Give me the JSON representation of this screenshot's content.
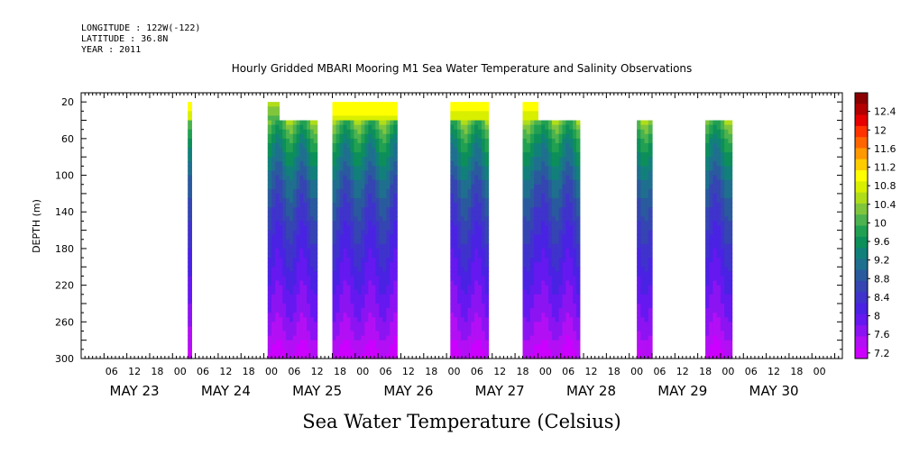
{
  "header": {
    "longitude": "LONGITUDE : 122W(-122)",
    "latitude": "LATITUDE : 36.8N",
    "year": "YEAR : 2011",
    "title": "Hourly Gridded MBARI Mooring M1 Sea Water Temperature and Salinity Observations"
  },
  "chart_data": {
    "type": "heatmap",
    "title": "Hourly Gridded MBARI Mooring M1 Sea Water Temperature and Salinity Observations",
    "xlabel": "Sea Water Temperature (Celsius)",
    "ylabel": "DEPTH (m)",
    "ylim": [
      300,
      10
    ],
    "y_ticks": [
      20,
      60,
      100,
      140,
      180,
      220,
      260,
      300
    ],
    "x_range_hours": [
      0,
      200
    ],
    "x_tick_hours": [
      "06",
      "12",
      "18",
      "00",
      "06",
      "12",
      "18",
      "00",
      "06",
      "12",
      "18",
      "00",
      "06",
      "12",
      "18",
      "00",
      "06",
      "12",
      "18",
      "00",
      "06",
      "12",
      "18",
      "00",
      "06",
      "12",
      "18",
      "00",
      "06",
      "12",
      "18",
      "00"
    ],
    "day_labels": [
      "MAY 23",
      "MAY 24",
      "MAY 25",
      "MAY 26",
      "MAY 27",
      "MAY 28",
      "MAY 29",
      "MAY 30"
    ],
    "colorbar": {
      "labels": [
        "12.4",
        "12",
        "11.6",
        "11.2",
        "10.8",
        "10.4",
        "10",
        "9.6",
        "9.2",
        "8.8",
        "8.4",
        "8",
        "7.6",
        "7.2"
      ],
      "colors": [
        "#8b0000",
        "#b30000",
        "#e60000",
        "#ff3300",
        "#ff6600",
        "#ff9900",
        "#ffcc00",
        "#ffff00",
        "#d9ef00",
        "#b0dd1a",
        "#80c63c",
        "#4cb34f",
        "#22a052",
        "#0d8f5a",
        "#12807a",
        "#1f6f8f",
        "#2a5a9e",
        "#3545b2",
        "#3f33cc",
        "#4a22e3",
        "#6618f0",
        "#8c14f2",
        "#b30ff5",
        "#cc00ff"
      ],
      "range": [
        7.2,
        12.6
      ]
    },
    "segments": [
      {
        "start": "May 24 02:00",
        "end": "May 24 03:00",
        "top_depth": 20,
        "surface_temp": 10.9
      },
      {
        "start": "May 24 23:00",
        "end": "May 25 02:00",
        "top_depth": 20,
        "surface_temp": 10.4
      },
      {
        "start": "May 25 02:00",
        "end": "May 25 12:00",
        "top_depth": 40,
        "surface_temp": 9.6
      },
      {
        "start": "May 25 16:00",
        "end": "May 26 09:00",
        "top_depth": 20,
        "surface_temp": 11.0
      },
      {
        "start": "May 26 23:00",
        "end": "May 27 09:00",
        "top_depth": 20,
        "surface_temp": 10.9
      },
      {
        "start": "May 27 18:00",
        "end": "May 27 22:00",
        "top_depth": 20,
        "surface_temp": 10.9
      },
      {
        "start": "May 27 22:00",
        "end": "May 28 09:00",
        "top_depth": 40,
        "surface_temp": 9.4
      },
      {
        "start": "May 29 00:00",
        "end": "May 29 04:00",
        "top_depth": 40,
        "surface_temp": 9.3
      },
      {
        "start": "May 29 18:00",
        "end": "May 30 01:00",
        "top_depth": 40,
        "surface_temp": 9.3
      }
    ],
    "profile": {
      "depth": [
        20,
        60,
        100,
        140,
        180,
        220,
        260,
        300
      ],
      "temp": [
        10.6,
        9.6,
        9.0,
        8.6,
        8.3,
        8.0,
        7.7,
        7.3
      ]
    }
  }
}
